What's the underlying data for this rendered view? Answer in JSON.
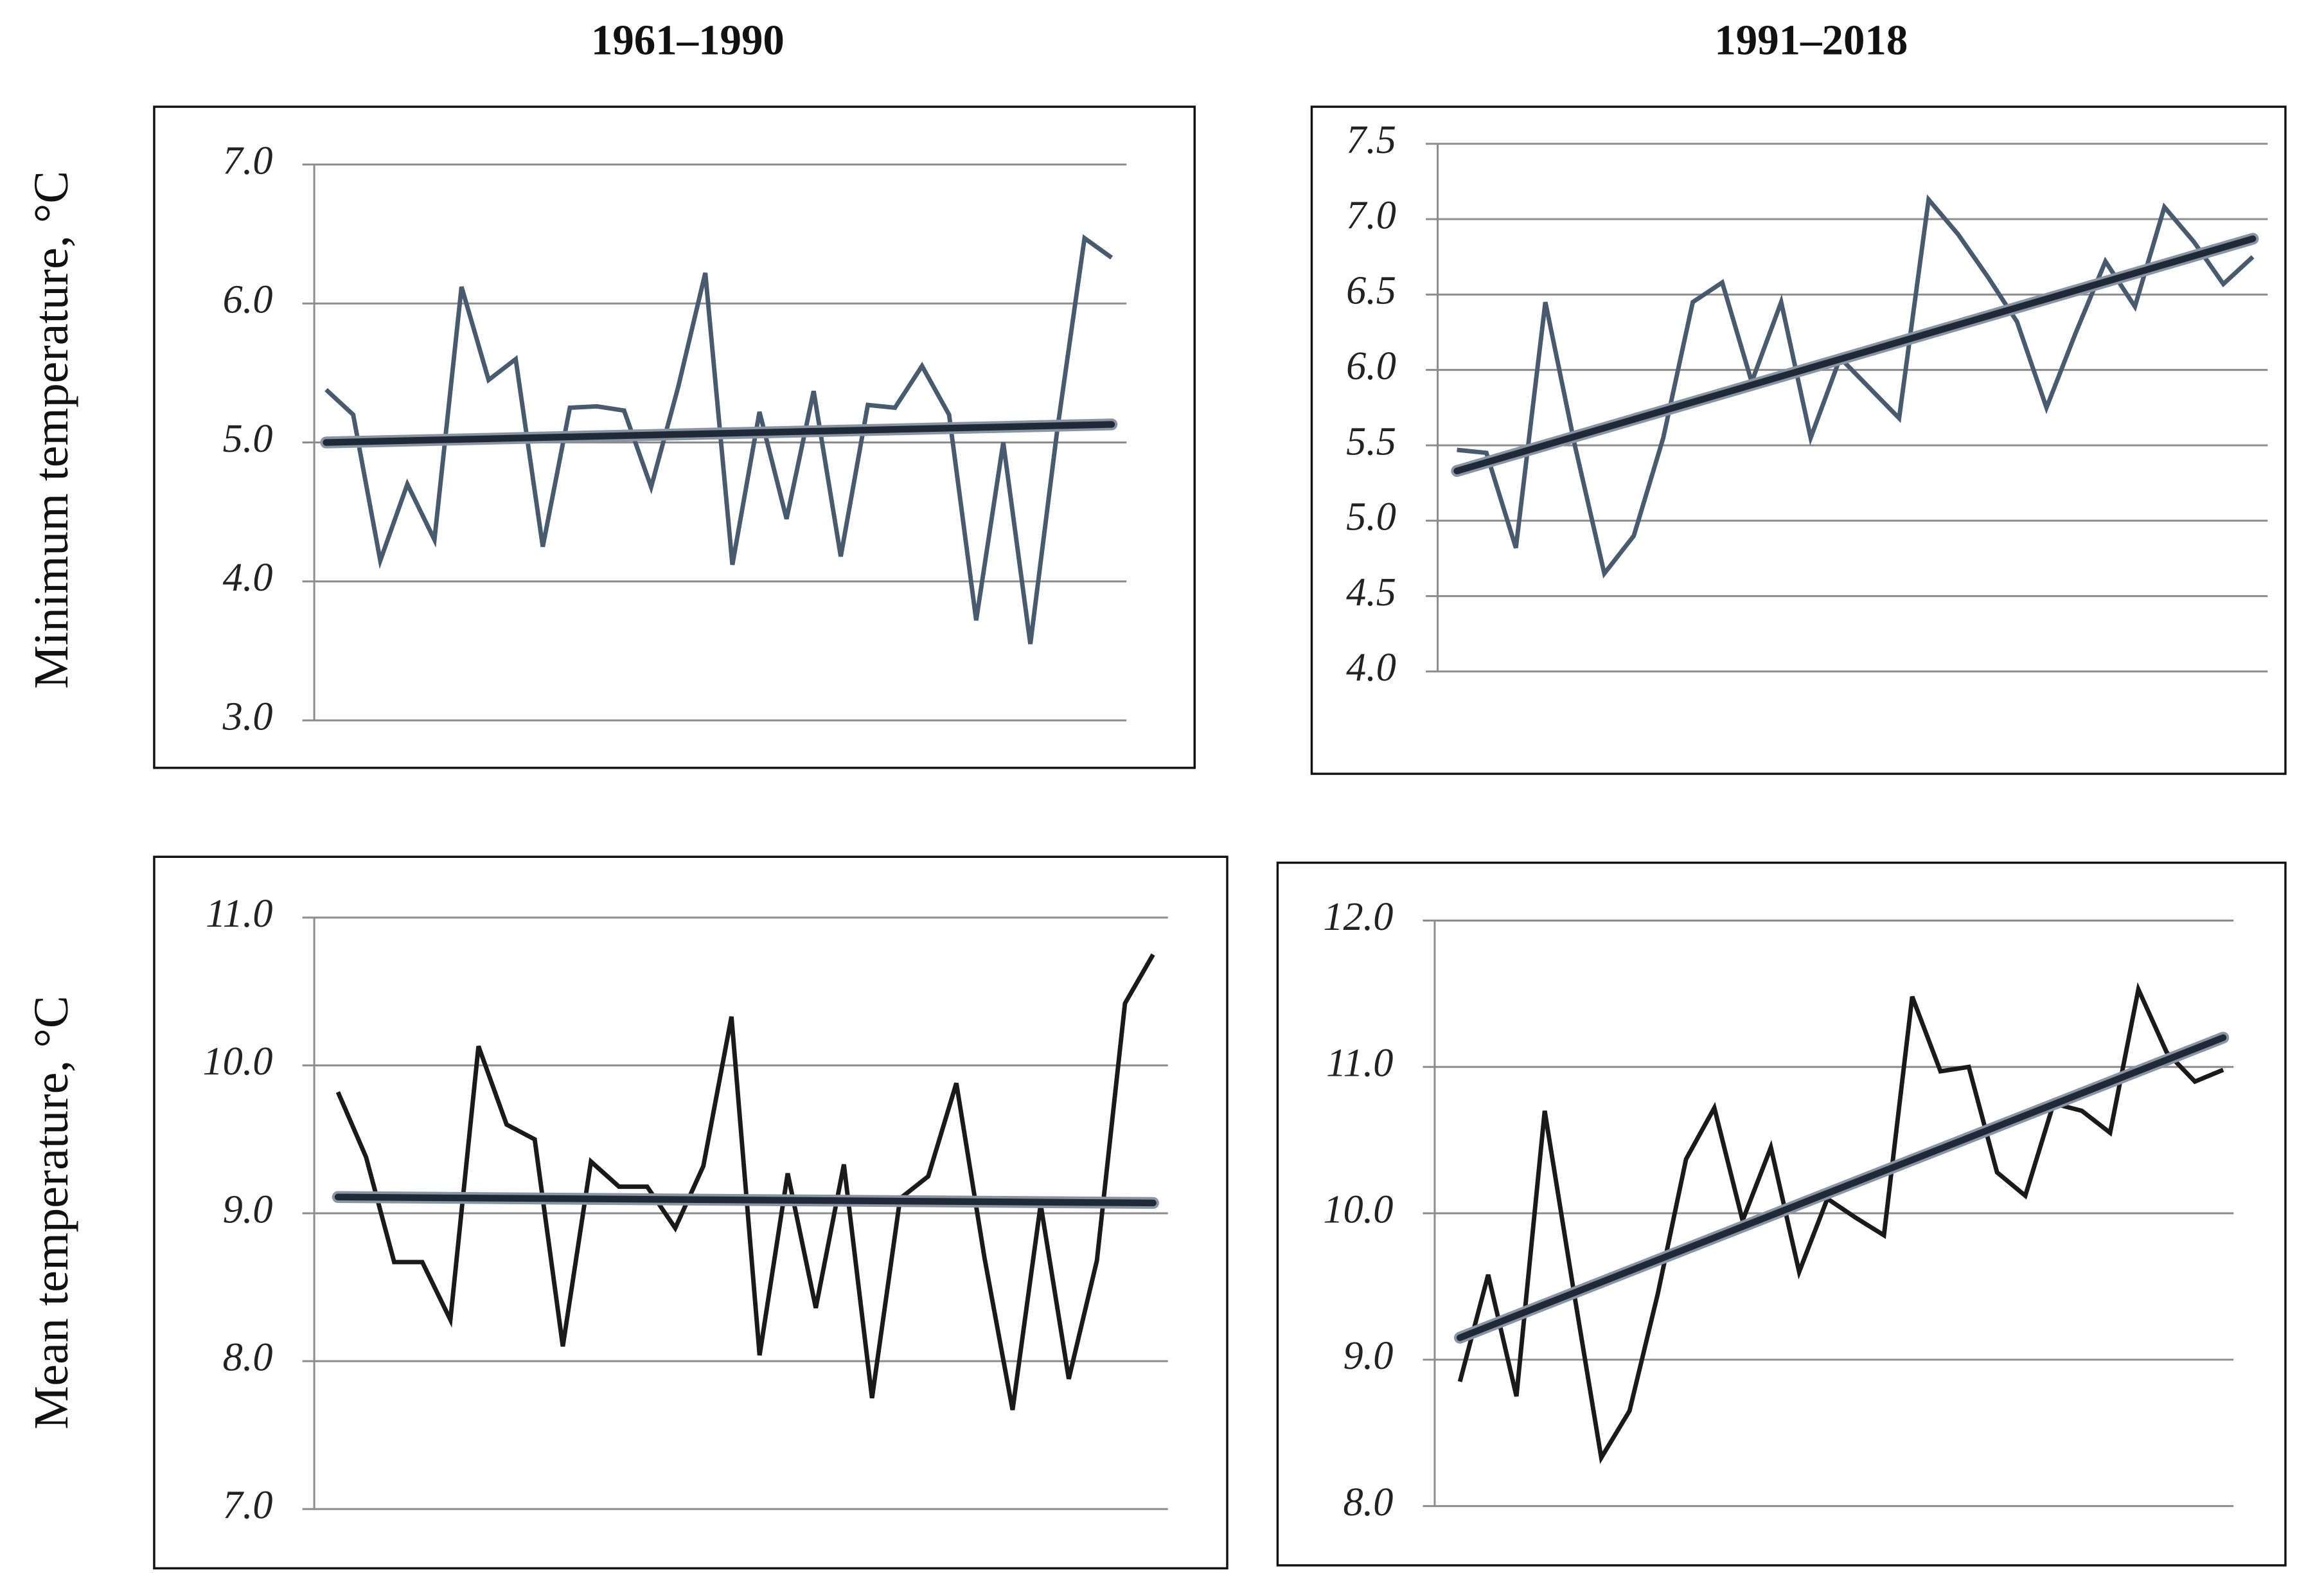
{
  "column_titles": [
    "1961–1990",
    "1991–2018"
  ],
  "row_labels": [
    "Minimum temperature, °C",
    "Mean temperature, °C"
  ],
  "chart_data": [
    {
      "type": "line",
      "grid": true,
      "ylim": [
        3,
        7
      ],
      "yticks": [
        {
          "value": 3,
          "label": "3.0"
        },
        {
          "value": 4,
          "label": "4.0"
        },
        {
          "value": 5,
          "label": "5.0"
        },
        {
          "value": 6,
          "label": "6.0"
        },
        {
          "value": 7,
          "label": "7.0"
        }
      ],
      "series": [
        {
          "color": "#475a6e",
          "values": [
            5.38,
            5.2,
            4.15,
            4.7,
            4.3,
            6.12,
            5.45,
            5.6,
            4.25,
            5.25,
            5.26,
            5.23,
            4.68,
            5.4,
            6.22,
            4.12,
            5.22,
            4.45,
            5.37,
            4.18,
            5.27,
            5.25,
            5.55,
            5.2,
            3.72,
            5.0,
            3.55,
            5.1,
            6.47,
            6.33
          ]
        }
      ],
      "trend": {
        "color": "#1f2a36",
        "values": [
          5.0,
          5.13
        ]
      }
    },
    {
      "type": "line",
      "grid": true,
      "ylim": [
        4,
        7.5
      ],
      "yticks": [
        {
          "value": 4,
          "label": "4.0"
        },
        4.5,
        {
          "value": 5,
          "label": "5.0"
        },
        5.5,
        {
          "value": 6,
          "label": "6.0"
        },
        6.5,
        {
          "value": 7,
          "label": "7.0"
        },
        7.5
      ],
      "series": [
        {
          "color": "#475a6e",
          "values": [
            5.47,
            5.45,
            4.82,
            6.45,
            5.5,
            4.65,
            4.9,
            5.55,
            6.45,
            6.58,
            5.92,
            6.45,
            5.55,
            6.08,
            5.88,
            5.68,
            7.13,
            6.9,
            6.62,
            6.32,
            5.75,
            6.25,
            6.72,
            6.42,
            7.08,
            6.85,
            6.57,
            6.75
          ]
        }
      ],
      "trend": {
        "color": "#1f2a36",
        "values": [
          5.33,
          6.87
        ]
      }
    },
    {
      "type": "line",
      "grid": true,
      "ylim": [
        7,
        11
      ],
      "yticks": [
        {
          "value": 7,
          "label": "7.0"
        },
        {
          "value": 8,
          "label": "8.0"
        },
        {
          "value": 9,
          "label": "9.0"
        },
        {
          "value": 10,
          "label": "10.0"
        },
        {
          "value": 11,
          "label": "11.0"
        }
      ],
      "series": [
        {
          "color": "#1a1a1a",
          "values": [
            9.82,
            9.38,
            8.67,
            8.67,
            8.28,
            10.13,
            9.6,
            9.5,
            8.1,
            9.35,
            9.18,
            9.18,
            8.9,
            9.32,
            10.33,
            8.04,
            9.27,
            8.36,
            9.33,
            7.75,
            9.1,
            9.25,
            9.88,
            8.7,
            7.67,
            9.06,
            7.88,
            8.68,
            10.42,
            10.75
          ]
        }
      ],
      "trend": {
        "color": "#1f2a36",
        "values": [
          9.11,
          9.07
        ]
      }
    },
    {
      "type": "line",
      "grid": true,
      "ylim": [
        8,
        12
      ],
      "yticks": [
        {
          "value": 8,
          "label": "8.0"
        },
        {
          "value": 9,
          "label": "9.0"
        },
        {
          "value": 10,
          "label": "10.0"
        },
        {
          "value": 11,
          "label": "11.0"
        },
        {
          "value": 12,
          "label": "12.0"
        }
      ],
      "series": [
        {
          "color": "#1a1a1a",
          "values": [
            8.85,
            9.58,
            8.75,
            10.7,
            9.5,
            8.33,
            8.65,
            9.45,
            10.37,
            10.72,
            9.95,
            10.45,
            9.6,
            10.1,
            9.97,
            9.85,
            11.48,
            10.97,
            11.0,
            10.28,
            10.12,
            10.75,
            10.7,
            10.55,
            11.53,
            11.1,
            10.9,
            10.98
          ]
        }
      ],
      "trend": {
        "color": "#1f2a36",
        "values": [
          9.15,
          11.2
        ]
      }
    }
  ]
}
